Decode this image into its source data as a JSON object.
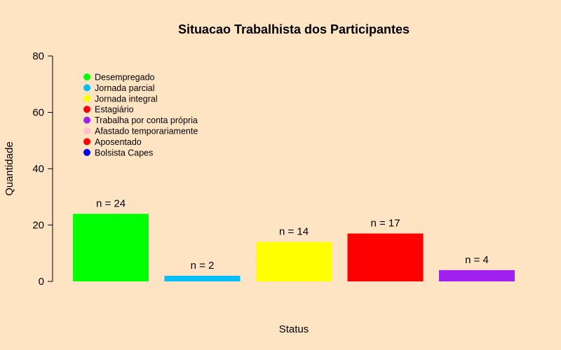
{
  "chart_data": {
    "type": "bar",
    "title": "Situacao Trabalhista dos Participantes",
    "xlabel": "Status",
    "ylabel": "Quantidade",
    "ylim": [
      0,
      80
    ],
    "yticks": [
      0,
      20,
      40,
      60,
      80
    ],
    "grid": false,
    "legend_position": "top-left",
    "bars": [
      {
        "value": 24,
        "label": "n = 24",
        "color": "#00FF00"
      },
      {
        "value": 2,
        "label": "n = 2",
        "color": "#00BFFF"
      },
      {
        "value": 14,
        "label": "n = 14",
        "color": "#FFFF00"
      },
      {
        "value": 17,
        "label": "n = 17",
        "color": "#FF0000"
      },
      {
        "value": 4,
        "label": "n = 4",
        "color": "#A020F0"
      }
    ],
    "legend": [
      {
        "name": "Desempregado",
        "color": "#00FF00"
      },
      {
        "name": "Jornada parcial",
        "color": "#00BFFF"
      },
      {
        "name": "Jornada integral",
        "color": "#FFFF00"
      },
      {
        "name": "Estagiário",
        "color": "#FF0000"
      },
      {
        "name": "Trabalha por conta própria",
        "color": "#A020F0"
      },
      {
        "name": "Afastado temporariamente",
        "color": "#FFC0CB"
      },
      {
        "name": "Aposentado",
        "color": "#FF0000"
      },
      {
        "name": "Bolsista Capes",
        "color": "#0000FF"
      }
    ]
  }
}
